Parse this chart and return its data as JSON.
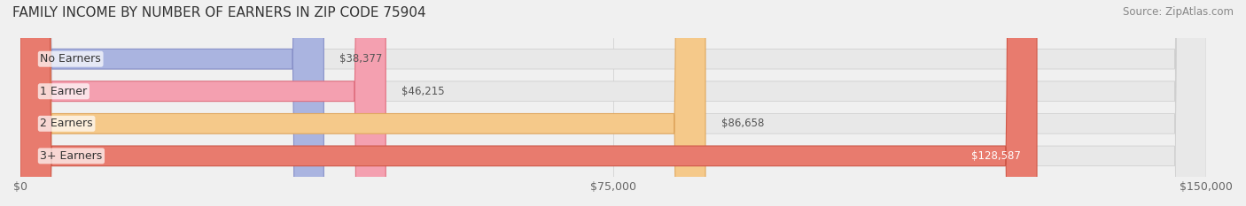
{
  "title": "FAMILY INCOME BY NUMBER OF EARNERS IN ZIP CODE 75904",
  "source": "Source: ZipAtlas.com",
  "categories": [
    "No Earners",
    "1 Earner",
    "2 Earners",
    "3+ Earners"
  ],
  "values": [
    38377,
    46215,
    86658,
    128587
  ],
  "bar_colors": [
    "#aab4e0",
    "#f4a0b0",
    "#f5c98a",
    "#e87b6e"
  ],
  "bar_edge_colors": [
    "#8890c8",
    "#e07080",
    "#e0a860",
    "#d05848"
  ],
  "label_colors": [
    "#555555",
    "#555555",
    "#555555",
    "#ffffff"
  ],
  "value_labels": [
    "$38,377",
    "$46,215",
    "$86,658",
    "$128,587"
  ],
  "x_max": 150000,
  "x_ticks": [
    0,
    75000,
    150000
  ],
  "x_tick_labels": [
    "$0",
    "$75,000",
    "$150,000"
  ],
  "bg_color": "#f0f0f0",
  "bar_bg_color": "#e8e8e8",
  "title_fontsize": 11,
  "source_fontsize": 8.5,
  "label_fontsize": 9,
  "value_fontsize": 8.5,
  "tick_fontsize": 9
}
